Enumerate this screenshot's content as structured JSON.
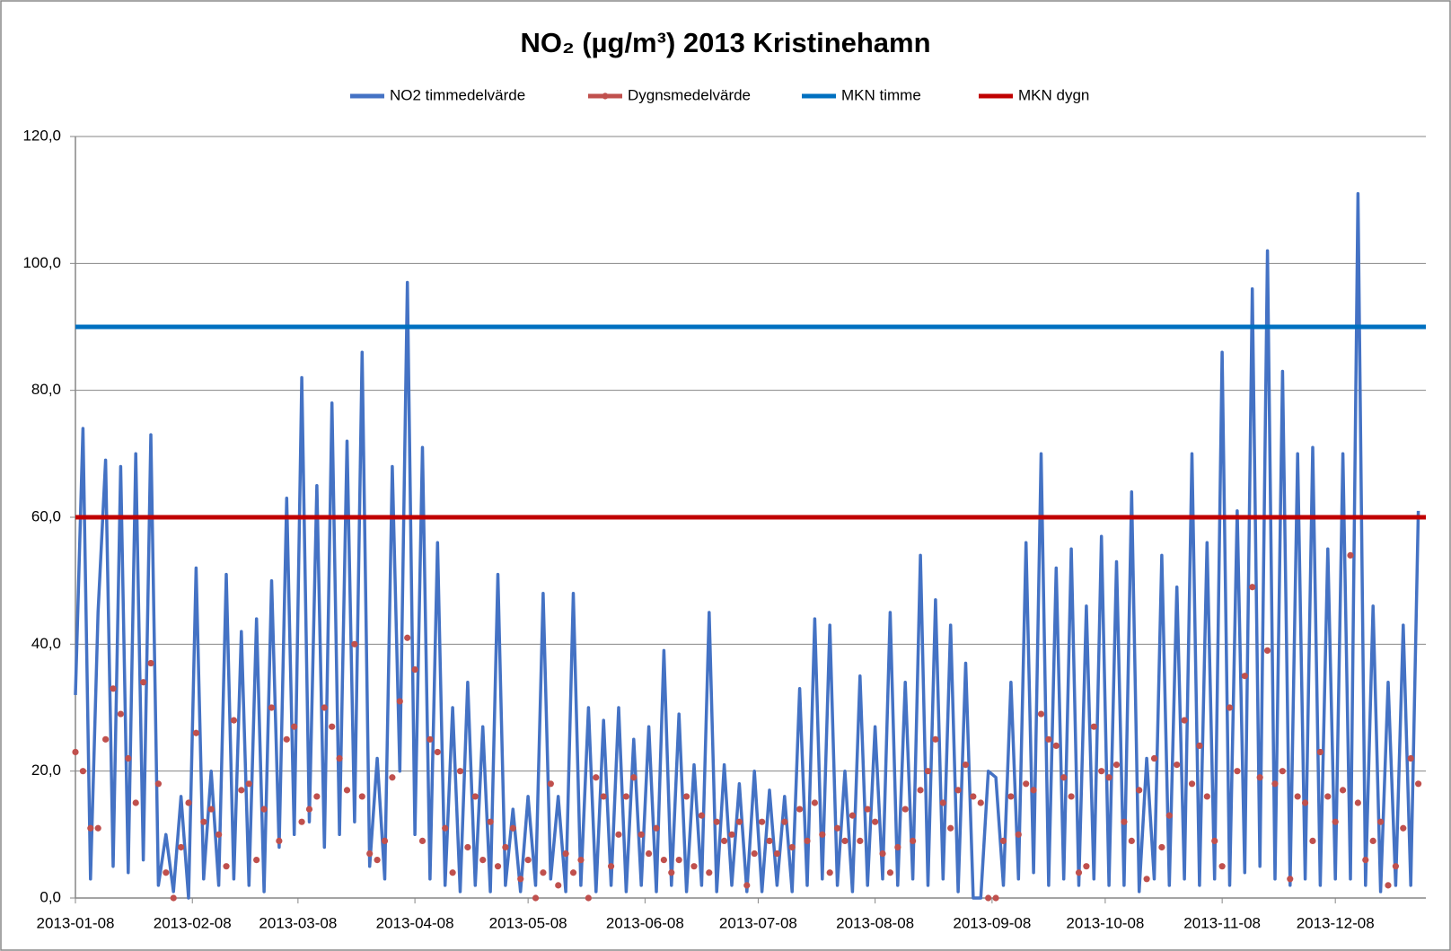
{
  "chart_data": {
    "type": "line",
    "title": "NO₂ (µg/m³) 2013 Kristinehamn",
    "x": [
      7,
      9,
      11,
      13,
      15,
      17,
      19,
      21,
      23,
      25,
      27,
      29,
      31,
      33,
      35,
      37,
      39,
      41,
      43,
      45,
      47,
      49,
      51,
      53,
      55,
      57,
      59,
      61,
      63,
      65,
      67,
      69,
      71,
      73,
      75,
      77,
      79,
      81,
      83,
      85,
      87,
      89,
      91,
      93,
      95,
      97,
      99,
      101,
      103,
      105,
      107,
      109,
      111,
      113,
      115,
      117,
      119,
      121,
      123,
      125,
      127,
      129,
      131,
      133,
      135,
      137,
      139,
      141,
      143,
      145,
      147,
      149,
      151,
      153,
      155,
      157,
      159,
      161,
      163,
      165,
      167,
      169,
      171,
      173,
      175,
      177,
      179,
      181,
      183,
      185,
      187,
      189,
      191,
      193,
      195,
      197,
      199,
      201,
      203,
      205,
      207,
      209,
      211,
      213,
      215,
      217,
      219,
      221,
      223,
      225,
      227,
      229,
      231,
      233,
      235,
      237,
      239,
      241,
      243,
      245,
      247,
      249,
      251,
      253,
      255,
      257,
      259,
      261,
      263,
      265,
      267,
      269,
      271,
      273,
      275,
      277,
      279,
      281,
      283,
      285,
      287,
      289,
      291,
      293,
      295,
      297,
      299,
      301,
      303,
      305,
      307,
      309,
      311,
      313,
      315,
      317,
      319,
      321,
      323,
      325,
      327,
      329,
      331,
      333,
      335,
      337,
      339,
      341,
      343,
      345,
      347,
      349,
      351,
      353,
      355,
      357,
      359,
      361,
      363
    ],
    "xlim": [
      7,
      365
    ],
    "xticks": [
      {
        "value": 7,
        "label": "2013-01-08"
      },
      {
        "value": 38,
        "label": "2013-02-08"
      },
      {
        "value": 66,
        "label": "2013-03-08"
      },
      {
        "value": 97,
        "label": "2013-04-08"
      },
      {
        "value": 127,
        "label": "2013-05-08"
      },
      {
        "value": 158,
        "label": "2013-06-08"
      },
      {
        "value": 188,
        "label": "2013-07-08"
      },
      {
        "value": 219,
        "label": "2013-08-08"
      },
      {
        "value": 250,
        "label": "2013-09-08"
      },
      {
        "value": 280,
        "label": "2013-10-08"
      },
      {
        "value": 311,
        "label": "2013-11-08"
      },
      {
        "value": 341,
        "label": "2013-12-08"
      }
    ],
    "ylim": [
      0,
      120
    ],
    "yticks": [
      {
        "value": 0,
        "label": "0,0"
      },
      {
        "value": 20,
        "label": "20,0"
      },
      {
        "value": 40,
        "label": "40,0"
      },
      {
        "value": 60,
        "label": "60,0"
      },
      {
        "value": 80,
        "label": "80,0"
      },
      {
        "value": 100,
        "label": "100,0"
      },
      {
        "value": 120,
        "label": "120,0"
      }
    ],
    "grid": true,
    "legend": "top",
    "series": [
      {
        "name": "NO2 timmedelvärde",
        "color": "#4472c4",
        "style": "line",
        "values": [
          32,
          74,
          3,
          45,
          69,
          5,
          68,
          4,
          70,
          6,
          73,
          2,
          10,
          1,
          16,
          0,
          52,
          3,
          20,
          2,
          51,
          3,
          42,
          2,
          44,
          1,
          50,
          8,
          63,
          10,
          82,
          12,
          65,
          8,
          78,
          10,
          72,
          12,
          86,
          5,
          22,
          3,
          68,
          20,
          97,
          10,
          71,
          3,
          56,
          2,
          30,
          1,
          34,
          2,
          27,
          1,
          51,
          2,
          14,
          1,
          16,
          2,
          48,
          3,
          16,
          1,
          48,
          2,
          30,
          1,
          28,
          2,
          30,
          1,
          25,
          2,
          27,
          1,
          39,
          2,
          29,
          1,
          21,
          2,
          45,
          1,
          21,
          2,
          18,
          1,
          20,
          1,
          17,
          2,
          16,
          1,
          33,
          2,
          44,
          3,
          43,
          2,
          20,
          1,
          35,
          2,
          27,
          3,
          45,
          2,
          34,
          3,
          54,
          2,
          47,
          3,
          43,
          1,
          37,
          0,
          0,
          20,
          19,
          2,
          34,
          3,
          56,
          4,
          70,
          2,
          52,
          3,
          55,
          2,
          46,
          3,
          57,
          2,
          53,
          2,
          64,
          1,
          22,
          3,
          54,
          2,
          49,
          3,
          70,
          2,
          56,
          3,
          86,
          2,
          61,
          4,
          96,
          5,
          102,
          3,
          83,
          2,
          70,
          3,
          71,
          2,
          55,
          3,
          70,
          3,
          111,
          2,
          46,
          1,
          34,
          2,
          43,
          2,
          61
        ]
      },
      {
        "name": "Dygnsmedelvärde",
        "color": "#c0504d",
        "style": "markers",
        "values": [
          23,
          20,
          11,
          11,
          25,
          33,
          29,
          22,
          15,
          34,
          37,
          18,
          4,
          0,
          8,
          15,
          26,
          12,
          14,
          10,
          5,
          28,
          17,
          18,
          6,
          14,
          30,
          9,
          25,
          27,
          12,
          14,
          16,
          30,
          27,
          22,
          17,
          40,
          16,
          7,
          6,
          9,
          19,
          31,
          41,
          36,
          9,
          25,
          23,
          11,
          4,
          20,
          8,
          16,
          6,
          12,
          5,
          8,
          11,
          3,
          6,
          0,
          4,
          18,
          2,
          7,
          4,
          6,
          0,
          19,
          16,
          5,
          10,
          16,
          19,
          10,
          7,
          11,
          6,
          4,
          6,
          16,
          5,
          13,
          4,
          12,
          9,
          10,
          12,
          2,
          7,
          12,
          9,
          7,
          12,
          8,
          14,
          9,
          15,
          10,
          4,
          11,
          9,
          13,
          9,
          14,
          12,
          7,
          4,
          8,
          14,
          9,
          17,
          20,
          25,
          15,
          11,
          17,
          21,
          16,
          15,
          0,
          0,
          9,
          16,
          10,
          18,
          17,
          29,
          25,
          24,
          19,
          16,
          4,
          5,
          27,
          20,
          19,
          21,
          12,
          9,
          17,
          3,
          22,
          8,
          13,
          21,
          28,
          18,
          24,
          16,
          9,
          5,
          30,
          20,
          35,
          49,
          19,
          39,
          18,
          20,
          3,
          16,
          15,
          9,
          23,
          16,
          12,
          17,
          54,
          15,
          6,
          9,
          12,
          2,
          5,
          11,
          22,
          18
        ]
      },
      {
        "name": "MKN timme",
        "color": "#0070c0",
        "style": "line",
        "x": [
          7,
          365
        ],
        "values": [
          90,
          90
        ]
      },
      {
        "name": "MKN dygn",
        "color": "#c00000",
        "style": "line",
        "x": [
          7,
          365
        ],
        "values": [
          60,
          60
        ]
      }
    ]
  }
}
